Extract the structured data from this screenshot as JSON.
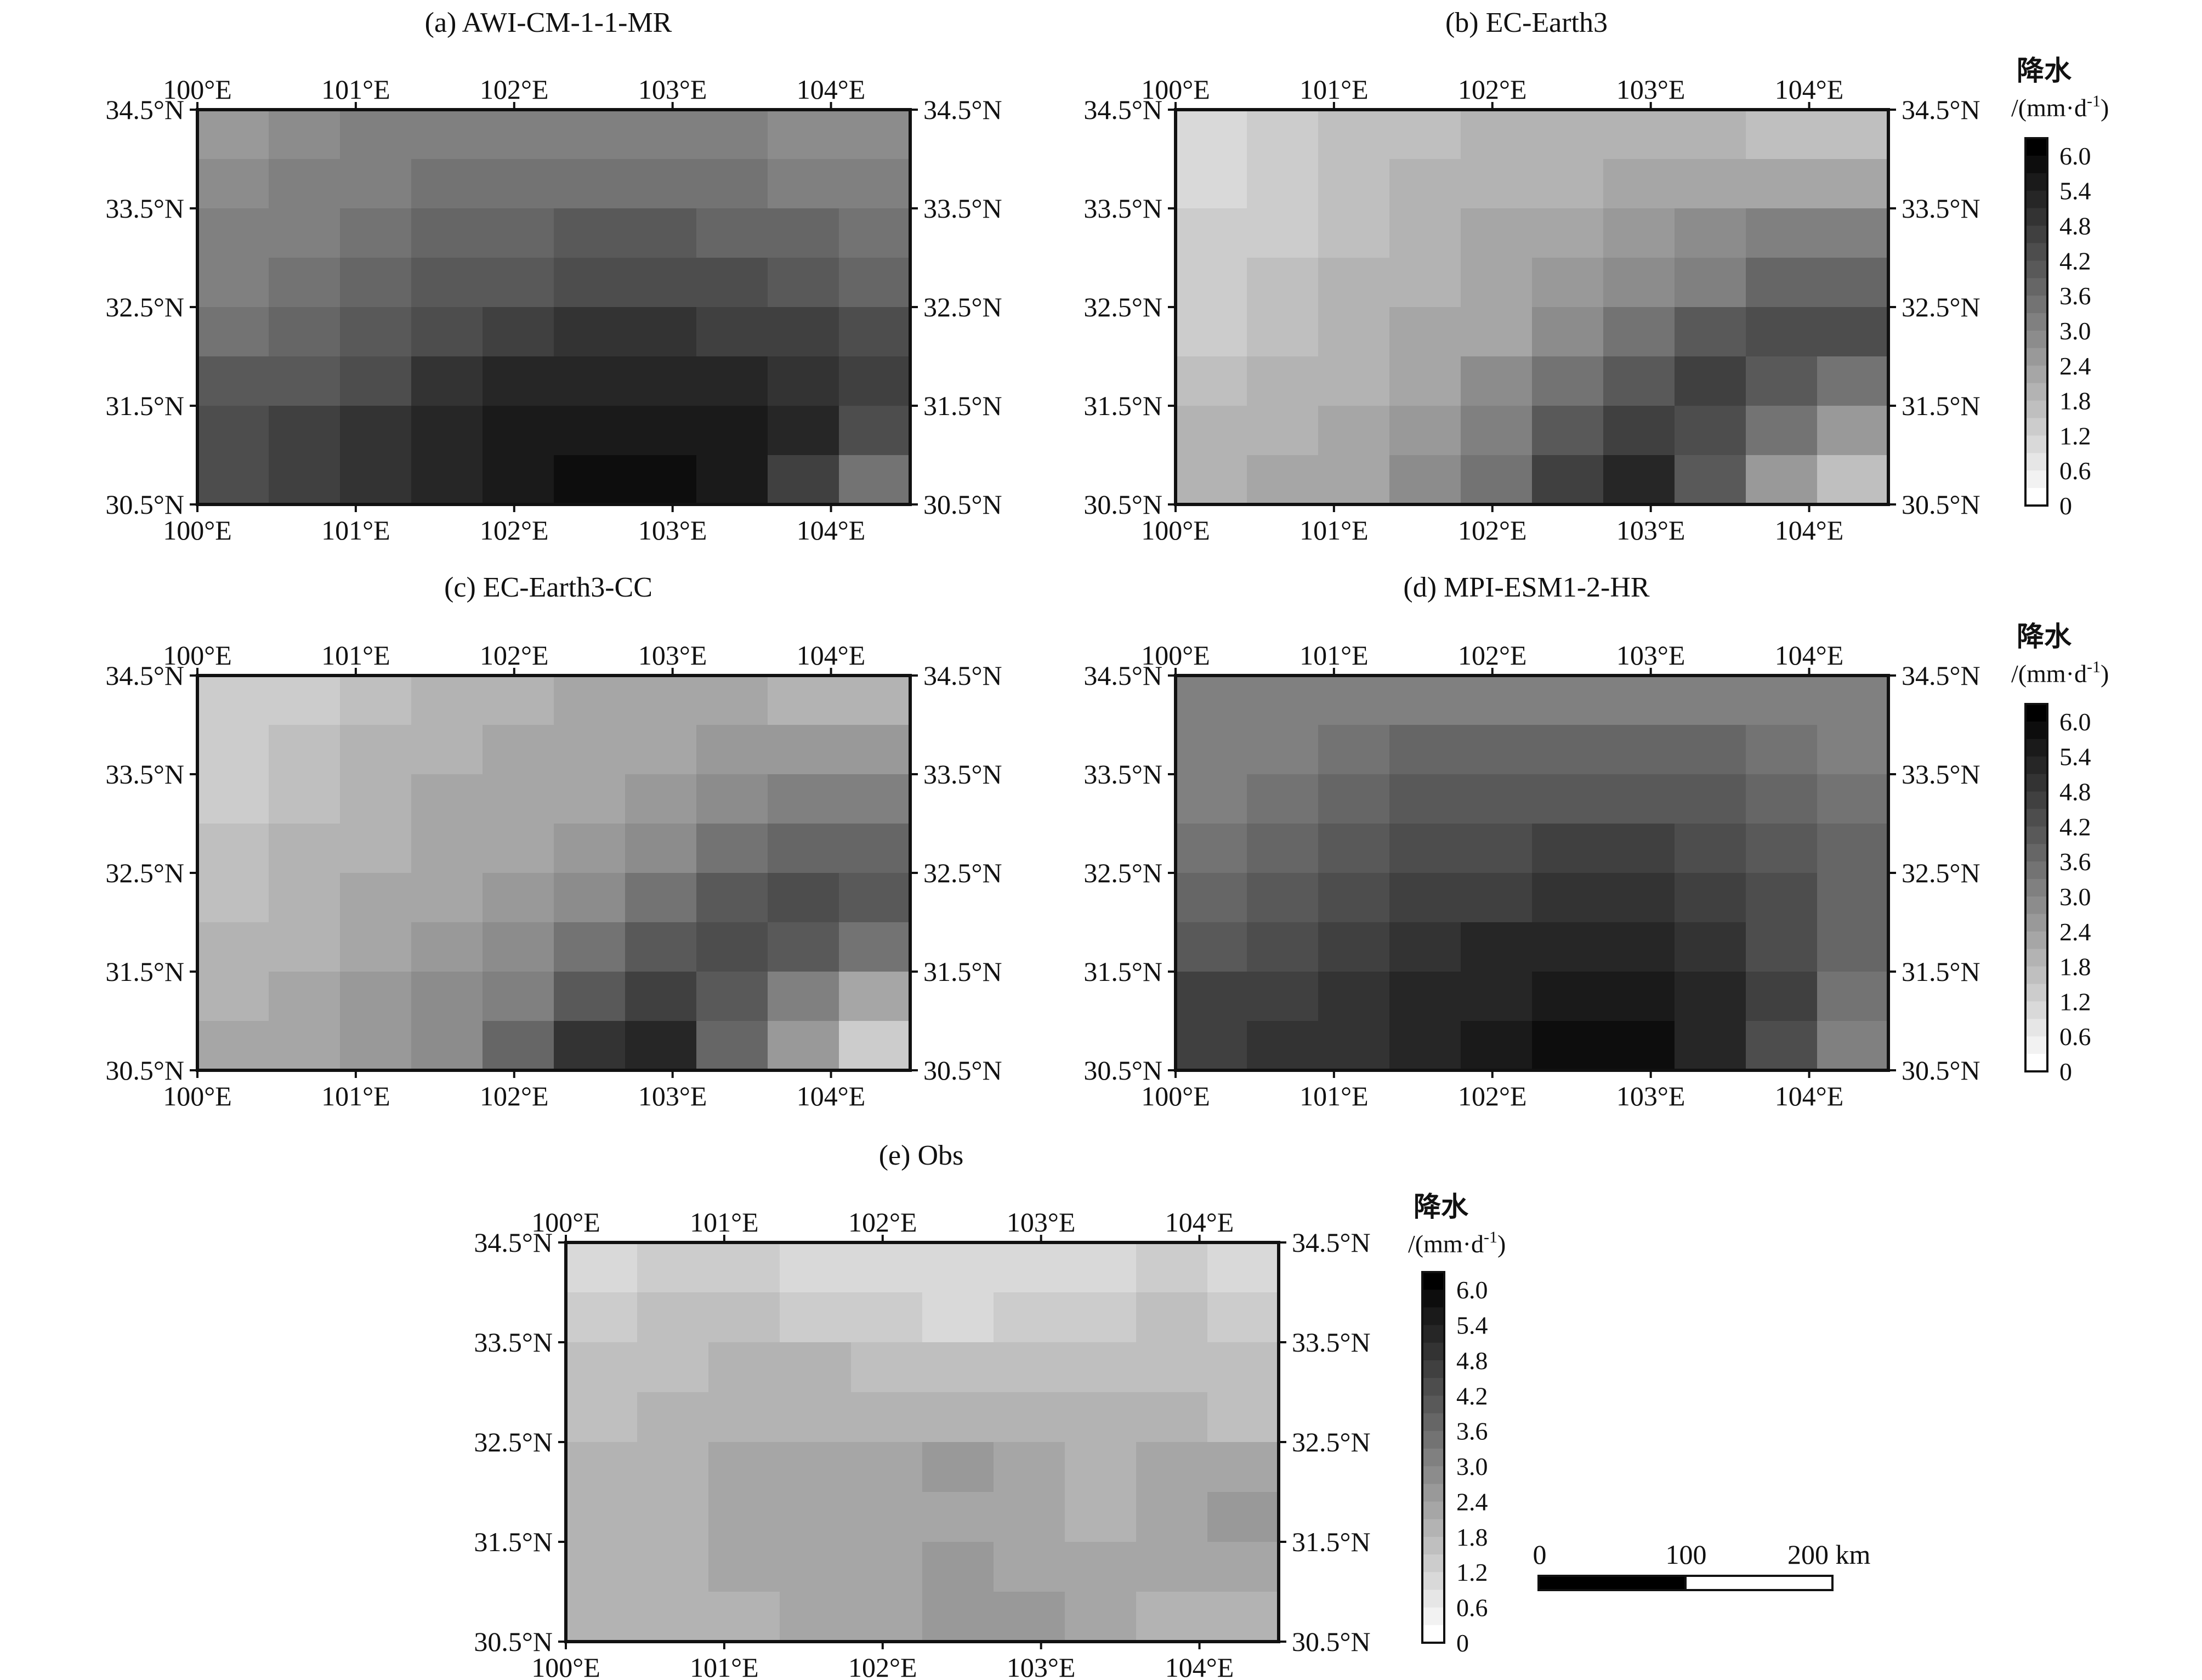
{
  "colors": {
    "frame": "#111111",
    "colorbar_low": "#ffffff",
    "colorbar_high": "#000000",
    "scalebar_fill": "#000000",
    "scalebar_empty": "#ffffff"
  },
  "lon_ticks": [
    "100°E",
    "101°E",
    "102°E",
    "103°E",
    "104°E"
  ],
  "lat_ticks": [
    "34.5°N",
    "33.5°N",
    "32.5°N",
    "31.5°N",
    "30.5°N"
  ],
  "map_extent": {
    "lon": [
      100,
      104.5
    ],
    "lat": [
      30.5,
      34.5
    ]
  },
  "chart_data": [
    {
      "type": "heatmap",
      "title": "(a) AWI-CM-1-1-MR",
      "x_range": [
        100,
        104.5
      ],
      "y_range": [
        30.5,
        34.5
      ],
      "grid_step_degrees": 0.5,
      "colorbar": false,
      "values_description": "rows from north (34.5°N) to south (30.5°N), columns from 100°E to 104.5°E, precipitation mm·d-1",
      "values": [
        [
          2.6,
          2.8,
          3.0,
          3.0,
          3.1,
          3.2,
          3.1,
          3.0,
          2.9,
          2.8
        ],
        [
          2.8,
          3.0,
          3.2,
          3.4,
          3.5,
          3.6,
          3.6,
          3.5,
          3.3,
          3.1
        ],
        [
          3.0,
          3.2,
          3.4,
          3.7,
          3.9,
          4.0,
          4.0,
          3.9,
          3.7,
          3.5
        ],
        [
          3.2,
          3.4,
          3.7,
          4.0,
          4.2,
          4.4,
          4.4,
          4.3,
          4.1,
          3.9
        ],
        [
          3.6,
          3.8,
          4.1,
          4.5,
          4.7,
          4.9,
          4.9,
          4.8,
          4.6,
          4.3
        ],
        [
          4.0,
          4.2,
          4.5,
          4.9,
          5.2,
          5.4,
          5.4,
          5.3,
          5.0,
          4.6
        ],
        [
          4.4,
          4.6,
          4.9,
          5.3,
          5.6,
          5.8,
          5.8,
          5.6,
          5.2,
          4.5
        ],
        [
          4.5,
          4.8,
          5.1,
          5.5,
          5.8,
          6.0,
          6.0,
          5.8,
          4.6,
          3.4
        ]
      ]
    },
    {
      "type": "heatmap",
      "title": "(b) EC-Earth3",
      "x_range": [
        100,
        104.5
      ],
      "y_range": [
        30.5,
        34.5
      ],
      "grid_step_degrees": 0.5,
      "colorbar": true,
      "values_description": "rows from north (34.5°N) to south (30.5°N), columns from 100°E to 104.5°E, precipitation mm·d-1",
      "values": [
        [
          0.9,
          1.2,
          1.5,
          1.7,
          1.8,
          1.9,
          1.9,
          1.8,
          1.7,
          1.5
        ],
        [
          1.1,
          1.3,
          1.6,
          1.8,
          1.9,
          2.0,
          2.1,
          2.2,
          2.3,
          2.3
        ],
        [
          1.2,
          1.4,
          1.7,
          1.9,
          2.1,
          2.2,
          2.4,
          2.7,
          3.0,
          3.1
        ],
        [
          1.3,
          1.5,
          1.8,
          2.0,
          2.2,
          2.4,
          2.8,
          3.3,
          3.8,
          3.9
        ],
        [
          1.4,
          1.6,
          1.9,
          2.1,
          2.3,
          2.8,
          3.4,
          4.0,
          4.5,
          4.4
        ],
        [
          1.6,
          1.8,
          2.0,
          2.3,
          2.7,
          3.4,
          4.2,
          4.6,
          4.2,
          3.5
        ],
        [
          1.8,
          2.0,
          2.2,
          2.5,
          3.1,
          4.0,
          4.8,
          4.4,
          3.4,
          2.4
        ],
        [
          1.9,
          2.1,
          2.3,
          2.7,
          3.6,
          4.8,
          5.2,
          4.0,
          2.6,
          1.6
        ]
      ]
    },
    {
      "type": "heatmap",
      "title": "(c) EC-Earth3-CC",
      "x_range": [
        100,
        104.5
      ],
      "y_range": [
        30.5,
        34.5
      ],
      "grid_step_degrees": 0.5,
      "colorbar": false,
      "values_description": "rows from north (34.5°N) to south (30.5°N), columns from 100°E to 104.5°E, precipitation mm·d-1",
      "values": [
        [
          1.2,
          1.4,
          1.7,
          1.9,
          2.0,
          2.1,
          2.1,
          2.1,
          2.0,
          1.9
        ],
        [
          1.3,
          1.6,
          1.8,
          2.0,
          2.1,
          2.2,
          2.3,
          2.4,
          2.5,
          2.6
        ],
        [
          1.4,
          1.7,
          1.9,
          2.1,
          2.2,
          2.3,
          2.5,
          2.8,
          3.1,
          3.2
        ],
        [
          1.5,
          1.8,
          2.0,
          2.2,
          2.3,
          2.5,
          2.9,
          3.4,
          3.8,
          3.9
        ],
        [
          1.6,
          1.9,
          2.1,
          2.3,
          2.5,
          2.9,
          3.5,
          4.0,
          4.3,
          4.2
        ],
        [
          1.8,
          2.0,
          2.2,
          2.5,
          2.8,
          3.5,
          4.2,
          4.5,
          4.0,
          3.4
        ],
        [
          2.0,
          2.2,
          2.4,
          2.7,
          3.2,
          4.1,
          4.8,
          4.2,
          3.2,
          2.3
        ],
        [
          2.1,
          2.3,
          2.5,
          2.9,
          3.8,
          5.0,
          5.2,
          3.9,
          2.5,
          1.4
        ]
      ]
    },
    {
      "type": "heatmap",
      "title": "(d) MPI-ESM1-2-HR",
      "x_range": [
        100,
        104.5
      ],
      "y_range": [
        30.5,
        34.5
      ],
      "grid_step_degrees": 0.5,
      "colorbar": true,
      "values_description": "rows from north (34.5°N) to south (30.5°N), columns from 100°E to 104.5°E, precipitation mm·d-1",
      "values": [
        [
          3.0,
          3.1,
          3.2,
          3.3,
          3.3,
          3.3,
          3.3,
          3.2,
          3.1,
          3.0
        ],
        [
          3.1,
          3.3,
          3.5,
          3.7,
          3.8,
          3.8,
          3.8,
          3.7,
          3.5,
          3.3
        ],
        [
          3.3,
          3.5,
          3.8,
          4.0,
          4.1,
          4.2,
          4.2,
          4.1,
          3.8,
          3.5
        ],
        [
          3.5,
          3.7,
          4.0,
          4.3,
          4.4,
          4.6,
          4.6,
          4.4,
          4.0,
          3.7
        ],
        [
          3.8,
          4.0,
          4.3,
          4.6,
          4.8,
          5.0,
          5.0,
          4.8,
          4.3,
          3.9
        ],
        [
          4.2,
          4.4,
          4.7,
          4.9,
          5.2,
          5.4,
          5.4,
          5.1,
          4.5,
          3.8
        ],
        [
          4.6,
          4.8,
          5.0,
          5.2,
          5.5,
          5.8,
          5.8,
          5.4,
          4.6,
          3.6
        ],
        [
          4.7,
          4.9,
          5.1,
          5.4,
          5.6,
          6.0,
          5.9,
          5.5,
          4.4,
          3.3
        ]
      ]
    },
    {
      "type": "heatmap",
      "title": "(e) Obs",
      "x_range": [
        100,
        104.5
      ],
      "y_range": [
        30.5,
        34.5
      ],
      "grid_step_degrees": 0.5,
      "colorbar": true,
      "values_description": "rows from north (34.5°N) to south (30.5°N), columns from 100°E to 104.5°E, precipitation mm·d-1",
      "values": [
        [
          1.1,
          1.2,
          1.2,
          1.1,
          1.0,
          1.0,
          1.0,
          1.1,
          1.2,
          1.1
        ],
        [
          1.3,
          1.5,
          1.5,
          1.4,
          1.2,
          1.1,
          1.2,
          1.4,
          1.5,
          1.4
        ],
        [
          1.5,
          1.7,
          1.8,
          1.8,
          1.6,
          1.6,
          1.6,
          1.7,
          1.7,
          1.6
        ],
        [
          1.7,
          1.8,
          1.9,
          1.9,
          1.9,
          1.9,
          1.9,
          1.9,
          1.8,
          1.6
        ],
        [
          1.8,
          1.9,
          2.2,
          2.3,
          2.3,
          2.4,
          2.2,
          1.9,
          2.1,
          2.3
        ],
        [
          1.8,
          1.9,
          2.2,
          2.3,
          2.3,
          2.2,
          2.1,
          1.9,
          2.2,
          2.4
        ],
        [
          1.8,
          1.9,
          2.1,
          2.2,
          2.3,
          2.4,
          2.3,
          2.1,
          2.1,
          2.2
        ],
        [
          1.8,
          1.9,
          2.0,
          2.1,
          2.3,
          2.6,
          2.5,
          2.2,
          2.0,
          1.8
        ]
      ]
    }
  ],
  "colorbar": {
    "title": "降水",
    "unit": "/(mm·d",
    "unit_sup": "-1",
    "unit_close": ")",
    "min": 0,
    "max": 6.3,
    "ticks": [
      "6.0",
      "5.4",
      "4.8",
      "4.2",
      "3.6",
      "3.0",
      "2.4",
      "1.8",
      "1.2",
      "0.6",
      "0"
    ],
    "tick_values": [
      6.0,
      5.4,
      4.8,
      4.2,
      3.6,
      3.0,
      2.4,
      1.8,
      1.2,
      0.6,
      0
    ],
    "levels": 21
  },
  "scalebar": {
    "labels": [
      "0",
      "100",
      "200 km"
    ],
    "values_km": [
      0,
      100,
      200
    ]
  }
}
